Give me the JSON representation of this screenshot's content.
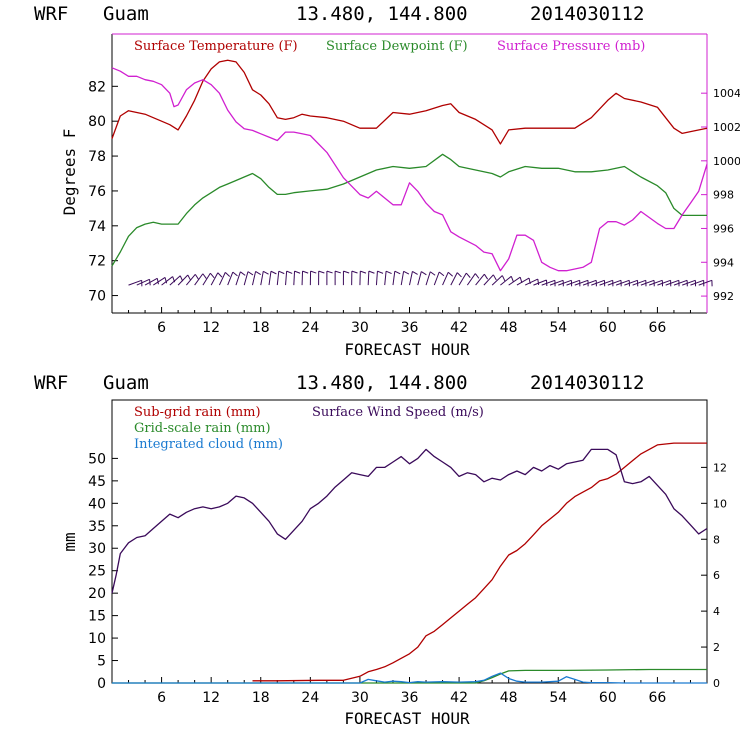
{
  "colors": {
    "red": "#b00000",
    "green": "#2a8a2a",
    "magenta": "#d020d0",
    "purple": "#3a0a5a",
    "blue": "#1a7ad0",
    "axis": "#000000",
    "frame_right_top": "#d020d0"
  },
  "chart_data": [
    {
      "type": "line",
      "header": {
        "model": "WRF",
        "station": "Guam",
        "coords": "13.480, 144.800",
        "date": "2014030112"
      },
      "xlabel": "FORECAST HOUR",
      "ylabel": "Degrees F",
      "xlim": [
        0,
        72
      ],
      "x_ticks": [
        "6",
        "12",
        "18",
        "24",
        "30",
        "36",
        "42",
        "48",
        "54",
        "60",
        "66"
      ],
      "x_tick_values": [
        6,
        12,
        18,
        24,
        30,
        36,
        42,
        48,
        54,
        60,
        66
      ],
      "ylim": [
        69,
        85
      ],
      "y_ticks": [
        "70",
        "72",
        "74",
        "76",
        "78",
        "80",
        "82"
      ],
      "y_tick_values": [
        70,
        72,
        74,
        76,
        78,
        80,
        82
      ],
      "y2lim": [
        991,
        1007.5
      ],
      "y2_ticks": [
        "992",
        "994",
        "996",
        "998",
        "1000",
        "1002",
        "1004"
      ],
      "y2_tick_values": [
        992,
        994,
        996,
        998,
        1000,
        1002,
        1004
      ],
      "legend": [
        {
          "label": "Surface Temperature (F)",
          "color": "red"
        },
        {
          "label": "Surface Dewpoint (F)",
          "color": "green"
        },
        {
          "label": "Surface Pressure (mb)",
          "color": "magenta"
        }
      ],
      "series": [
        {
          "name": "Surface Temperature (F)",
          "axis": "left",
          "color": "red",
          "x": [
            0,
            1,
            2,
            3,
            4,
            5,
            6,
            7,
            8,
            9,
            10,
            11,
            12,
            13,
            14,
            15,
            16,
            17,
            18,
            19,
            20,
            21,
            22,
            23,
            24,
            26,
            28,
            30,
            32,
            34,
            36,
            38,
            40,
            41,
            42,
            44,
            46,
            47,
            48,
            50,
            52,
            54,
            56,
            58,
            60,
            61,
            62,
            64,
            66,
            68,
            69,
            70,
            72
          ],
          "y": [
            79.0,
            80.3,
            80.6,
            80.5,
            80.4,
            80.2,
            80.0,
            79.8,
            79.5,
            80.3,
            81.2,
            82.3,
            83.0,
            83.4,
            83.5,
            83.4,
            82.8,
            81.8,
            81.5,
            81.0,
            80.2,
            80.1,
            80.2,
            80.4,
            80.3,
            80.2,
            80.0,
            79.6,
            79.6,
            80.5,
            80.4,
            80.6,
            80.9,
            81.0,
            80.5,
            80.1,
            79.5,
            78.7,
            79.5,
            79.6,
            79.6,
            79.6,
            79.6,
            80.2,
            81.2,
            81.6,
            81.3,
            81.1,
            80.8,
            79.6,
            79.3,
            79.4,
            79.6
          ]
        },
        {
          "name": "Surface Dewpoint (F)",
          "axis": "left",
          "color": "green",
          "x": [
            0,
            1,
            2,
            3,
            4,
            5,
            6,
            7,
            8,
            9,
            10,
            11,
            12,
            13,
            14,
            15,
            16,
            17,
            18,
            19,
            20,
            21,
            22,
            24,
            26,
            28,
            30,
            32,
            34,
            36,
            38,
            40,
            41,
            42,
            44,
            46,
            47,
            48,
            50,
            52,
            54,
            56,
            58,
            60,
            62,
            63,
            64,
            66,
            67,
            68,
            69,
            70,
            72
          ],
          "y": [
            71.7,
            72.5,
            73.4,
            73.9,
            74.1,
            74.2,
            74.1,
            74.1,
            74.1,
            74.7,
            75.2,
            75.6,
            75.9,
            76.2,
            76.4,
            76.6,
            76.8,
            77.0,
            76.7,
            76.2,
            75.8,
            75.8,
            75.9,
            76.0,
            76.1,
            76.4,
            76.8,
            77.2,
            77.4,
            77.3,
            77.4,
            78.1,
            77.8,
            77.4,
            77.2,
            77.0,
            76.8,
            77.1,
            77.4,
            77.3,
            77.3,
            77.1,
            77.1,
            77.2,
            77.4,
            77.1,
            76.8,
            76.3,
            75.9,
            75.0,
            74.6,
            74.6,
            74.6
          ]
        },
        {
          "name": "Surface Pressure (mb)",
          "axis": "right",
          "color": "magenta",
          "x": [
            0,
            1,
            2,
            3,
            4,
            5,
            6,
            7,
            7.5,
            8,
            9,
            10,
            11,
            12,
            13,
            14,
            15,
            16,
            17,
            18,
            19,
            20,
            21,
            22,
            23,
            24,
            26,
            28,
            30,
            31,
            32,
            33,
            34,
            35,
            36,
            37,
            38,
            39,
            40,
            41,
            42,
            44,
            45,
            46,
            47,
            48,
            49,
            50,
            51,
            52,
            53,
            54,
            55,
            56,
            57,
            58,
            59,
            60,
            61,
            62,
            63,
            64,
            66,
            67,
            68,
            69,
            70,
            71,
            72
          ],
          "y": [
            1005.5,
            1005.3,
            1005.0,
            1005.0,
            1004.8,
            1004.7,
            1004.5,
            1004.0,
            1003.2,
            1003.3,
            1004.2,
            1004.6,
            1004.8,
            1004.5,
            1004.0,
            1003.0,
            1002.3,
            1001.9,
            1001.8,
            1001.6,
            1001.4,
            1001.2,
            1001.7,
            1001.7,
            1001.6,
            1001.5,
            1000.5,
            999.0,
            998.0,
            997.8,
            998.2,
            997.8,
            997.4,
            997.4,
            998.7,
            998.2,
            997.5,
            997.0,
            996.8,
            995.8,
            995.5,
            995.0,
            994.6,
            994.5,
            993.5,
            994.2,
            995.6,
            995.6,
            995.3,
            994.0,
            993.7,
            993.5,
            993.5,
            993.6,
            993.7,
            994.0,
            996.0,
            996.4,
            996.4,
            996.2,
            996.5,
            997.0,
            996.3,
            996.0,
            996.0,
            996.8,
            997.5,
            998.2,
            999.8
          ]
        }
      ],
      "wind_barbs": {
        "x": [
          2,
          3,
          4,
          5,
          6,
          7,
          8,
          9,
          10,
          11,
          12,
          13,
          14,
          15,
          16,
          17,
          18,
          19,
          20,
          21,
          22,
          23,
          24,
          25,
          26,
          27,
          28,
          29,
          30,
          31,
          32,
          33,
          34,
          35,
          36,
          37,
          38,
          39,
          40,
          41,
          42,
          43,
          44,
          45,
          46,
          47,
          48,
          49,
          50,
          51,
          52,
          53,
          54,
          55,
          56,
          57,
          58,
          59,
          60,
          61,
          62,
          63,
          64,
          65,
          66,
          67,
          68,
          69,
          70,
          71
        ],
        "y": 70.6
      }
    },
    {
      "type": "line",
      "header": {
        "model": "WRF",
        "station": "Guam",
        "coords": "13.480, 144.800",
        "date": "2014030112"
      },
      "xlabel": "FORECAST HOUR",
      "ylabel": "mm",
      "xlim": [
        0,
        72
      ],
      "x_ticks": [
        "6",
        "12",
        "18",
        "24",
        "30",
        "36",
        "42",
        "48",
        "54",
        "60",
        "66"
      ],
      "x_tick_values": [
        6,
        12,
        18,
        24,
        30,
        36,
        42,
        48,
        54,
        60,
        66
      ],
      "ylim": [
        0,
        63
      ],
      "y_ticks": [
        "0",
        "5",
        "10",
        "15",
        "20",
        "25",
        "30",
        "35",
        "40",
        "45",
        "50"
      ],
      "y_tick_values": [
        0,
        5,
        10,
        15,
        20,
        25,
        30,
        35,
        40,
        45,
        50
      ],
      "y2lim": [
        0,
        15.75
      ],
      "y2_ticks": [
        "0",
        "2",
        "4",
        "6",
        "8",
        "10",
        "12"
      ],
      "y2_tick_values": [
        0,
        2,
        4,
        6,
        8,
        10,
        12
      ],
      "legend": [
        {
          "label": "Sub-grid rain (mm)",
          "color": "red"
        },
        {
          "label": "Surface Wind Speed (m/s)",
          "color": "purple"
        },
        {
          "label": "Grid-scale rain (mm)",
          "color": "green"
        },
        {
          "label": "Integrated cloud (mm)",
          "color": "blue"
        }
      ],
      "series": [
        {
          "name": "Sub-grid rain (mm)",
          "axis": "left",
          "color": "red",
          "x": [
            17,
            20,
            25,
            28,
            30,
            31,
            32,
            33,
            34,
            35,
            36,
            37,
            38,
            39,
            40,
            41,
            42,
            43,
            44,
            45,
            46,
            47,
            48,
            49,
            50,
            51,
            52,
            53,
            54,
            55,
            56,
            57,
            58,
            59,
            60,
            61,
            62,
            63,
            64,
            65,
            66,
            68,
            70,
            72
          ],
          "y": [
            0.5,
            0.5,
            0.6,
            0.6,
            1.5,
            2.5,
            3.0,
            3.6,
            4.5,
            5.5,
            6.5,
            8.0,
            10.5,
            11.5,
            13.0,
            14.5,
            16.0,
            17.5,
            19.0,
            21.0,
            23.0,
            26.0,
            28.5,
            29.5,
            31.0,
            33.0,
            35.0,
            36.5,
            38.0,
            40.0,
            41.5,
            42.5,
            43.5,
            45.0,
            45.5,
            46.5,
            48.0,
            49.5,
            51.0,
            52.0,
            53.0,
            53.4,
            53.4,
            53.4
          ]
        },
        {
          "name": "Surface Wind Speed (m/s)",
          "axis": "right",
          "color": "purple",
          "x": [
            0,
            0.5,
            1,
            2,
            3,
            4,
            5,
            6,
            7,
            8,
            9,
            10,
            11,
            12,
            13,
            14,
            15,
            16,
            17,
            18,
            19,
            20,
            21,
            22,
            23,
            24,
            25,
            26,
            27,
            28,
            29,
            30,
            31,
            32,
            33,
            34,
            35,
            36,
            37,
            38,
            39,
            40,
            41,
            42,
            43,
            44,
            45,
            46,
            47,
            48,
            49,
            50,
            51,
            52,
            53,
            54,
            55,
            56,
            57,
            58,
            59,
            60,
            61,
            62,
            63,
            64,
            65,
            66,
            67,
            68,
            69,
            70,
            71,
            72
          ],
          "y": [
            5.0,
            6.0,
            7.2,
            7.8,
            8.1,
            8.2,
            8.6,
            9.0,
            9.4,
            9.2,
            9.5,
            9.7,
            9.8,
            9.7,
            9.8,
            10.0,
            10.4,
            10.3,
            10.0,
            9.5,
            9.0,
            8.3,
            8.0,
            8.5,
            9.0,
            9.7,
            10.0,
            10.4,
            10.9,
            11.3,
            11.7,
            11.6,
            11.5,
            12.0,
            12.0,
            12.3,
            12.6,
            12.2,
            12.5,
            13.0,
            12.6,
            12.3,
            12.0,
            11.5,
            11.7,
            11.6,
            11.2,
            11.4,
            11.3,
            11.6,
            11.8,
            11.6,
            12.0,
            11.8,
            12.1,
            11.9,
            12.2,
            12.3,
            12.4,
            13.0,
            13.0,
            13.0,
            12.7,
            11.2,
            11.1,
            11.2,
            11.5,
            11.0,
            10.5,
            9.7,
            9.3,
            8.8,
            8.3,
            8.6
          ]
        },
        {
          "name": "Grid-scale rain (mm)",
          "axis": "left",
          "color": "green",
          "x": [
            0,
            30,
            44,
            45,
            46,
            47,
            48,
            50,
            55,
            60,
            65,
            70,
            72
          ],
          "y": [
            0,
            0,
            0,
            0.5,
            1.2,
            2.0,
            2.7,
            2.8,
            2.8,
            2.9,
            3.0,
            3.0,
            3.0
          ]
        },
        {
          "name": "Integrated cloud (mm)",
          "axis": "left",
          "color": "blue",
          "x": [
            0,
            28,
            30,
            31,
            32,
            33,
            34,
            35,
            36,
            37,
            38,
            40,
            42,
            44,
            45,
            46,
            47,
            48,
            49,
            50,
            52,
            54,
            55,
            56,
            57,
            58,
            60,
            62,
            64,
            66,
            68,
            70,
            72
          ],
          "y": [
            0,
            0,
            0,
            0.8,
            0.5,
            0.2,
            0.4,
            0.3,
            0.1,
            0.3,
            0.2,
            0.3,
            0.2,
            0.3,
            0.6,
            1.5,
            2.2,
            1.0,
            0.4,
            0.2,
            0.2,
            0.4,
            1.4,
            0.8,
            0.2,
            0.1,
            0.1,
            0,
            0,
            0,
            0,
            0,
            0
          ]
        }
      ]
    }
  ]
}
